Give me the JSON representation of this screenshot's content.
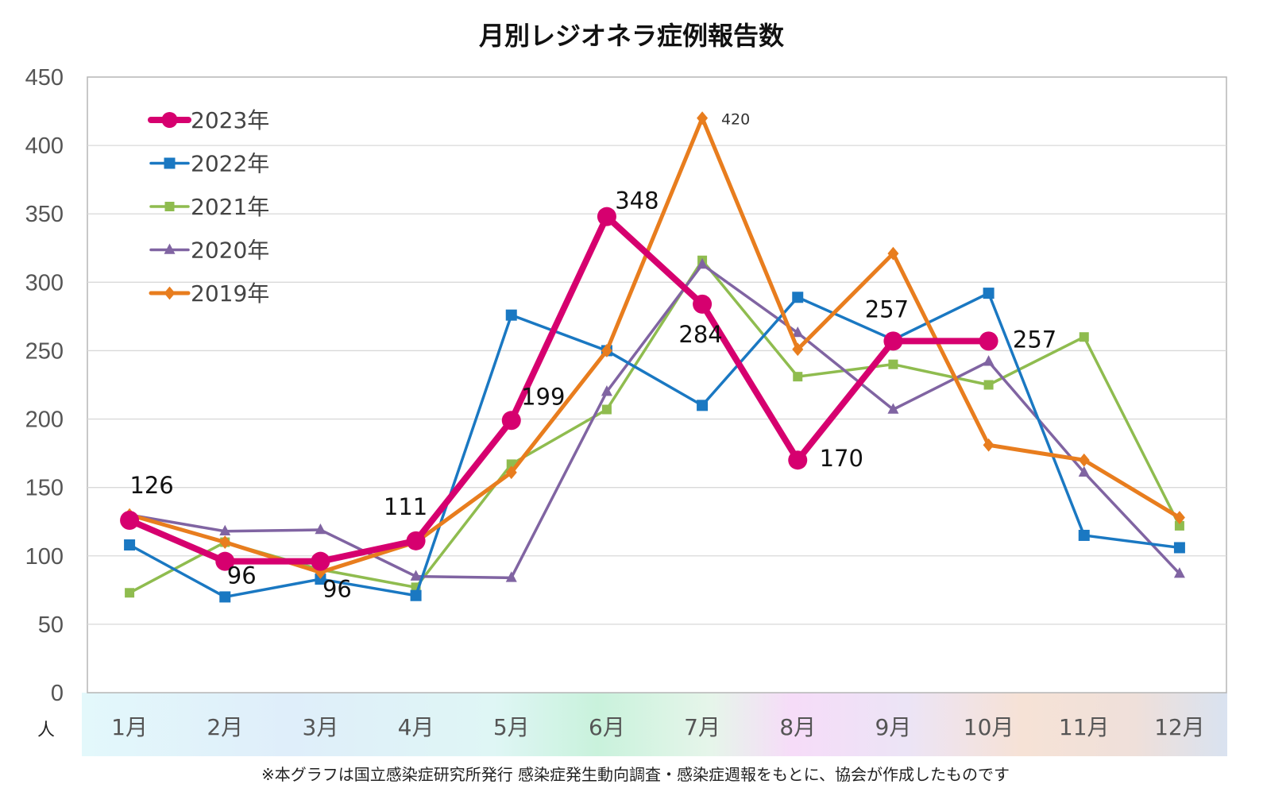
{
  "chart_data": {
    "type": "line",
    "title": "月別レジオネラ症例報告数",
    "unit_label": "人",
    "categories": [
      "1月",
      "2月",
      "3月",
      "4月",
      "5月",
      "6月",
      "7月",
      "8月",
      "9月",
      "10月",
      "11月",
      "12月"
    ],
    "yticks": [
      "0",
      "50",
      "100",
      "150",
      "200",
      "250",
      "300",
      "350",
      "400",
      "450"
    ],
    "ylim": [
      0,
      450
    ],
    "grid": true,
    "legend_position": "top-left",
    "series": [
      {
        "name": "2023年",
        "color": "#d6006f",
        "marker": "circle",
        "values": [
          126,
          96,
          96,
          111,
          199,
          348,
          284,
          170,
          257,
          257,
          null,
          null
        ]
      },
      {
        "name": "2022年",
        "color": "#1a78c2",
        "marker": "square",
        "values": [
          108,
          70,
          83,
          71,
          276,
          250,
          210,
          289,
          258,
          292,
          115,
          106
        ]
      },
      {
        "name": "2021年",
        "color": "#8fbc4f",
        "marker": "square",
        "values": [
          73,
          110,
          90,
          77,
          167,
          207,
          316,
          231,
          240,
          225,
          260,
          122
        ]
      },
      {
        "name": "2020年",
        "color": "#8064a2",
        "marker": "triangle",
        "values": [
          130,
          118,
          119,
          85,
          84,
          220,
          313,
          263,
          207,
          242,
          161,
          87
        ]
      },
      {
        "name": "2019年",
        "color": "#e87d1e",
        "marker": "diamond",
        "values": [
          130,
          110,
          88,
          110,
          161,
          250,
          420,
          251,
          321,
          181,
          170,
          128
        ]
      }
    ],
    "annotations": [
      {
        "series": "2023年",
        "index": 0,
        "text": "126"
      },
      {
        "series": "2023年",
        "index": 1,
        "text": "96"
      },
      {
        "series": "2023年",
        "index": 2,
        "text": "96"
      },
      {
        "series": "2023年",
        "index": 3,
        "text": "111"
      },
      {
        "series": "2023年",
        "index": 4,
        "text": "199"
      },
      {
        "series": "2023年",
        "index": 5,
        "text": "348"
      },
      {
        "series": "2023年",
        "index": 6,
        "text": "284"
      },
      {
        "series": "2023年",
        "index": 7,
        "text": "170"
      },
      {
        "series": "2023年",
        "index": 8,
        "text": "257"
      },
      {
        "series": "2023年",
        "index": 9,
        "text": "257"
      },
      {
        "series": "2019年",
        "index": 6,
        "text": "420"
      }
    ],
    "footnote": "※本グラフは国立感染症研究所発行 感染症発生動向調査・感染症週報をもとに、協会が作成したものです"
  }
}
